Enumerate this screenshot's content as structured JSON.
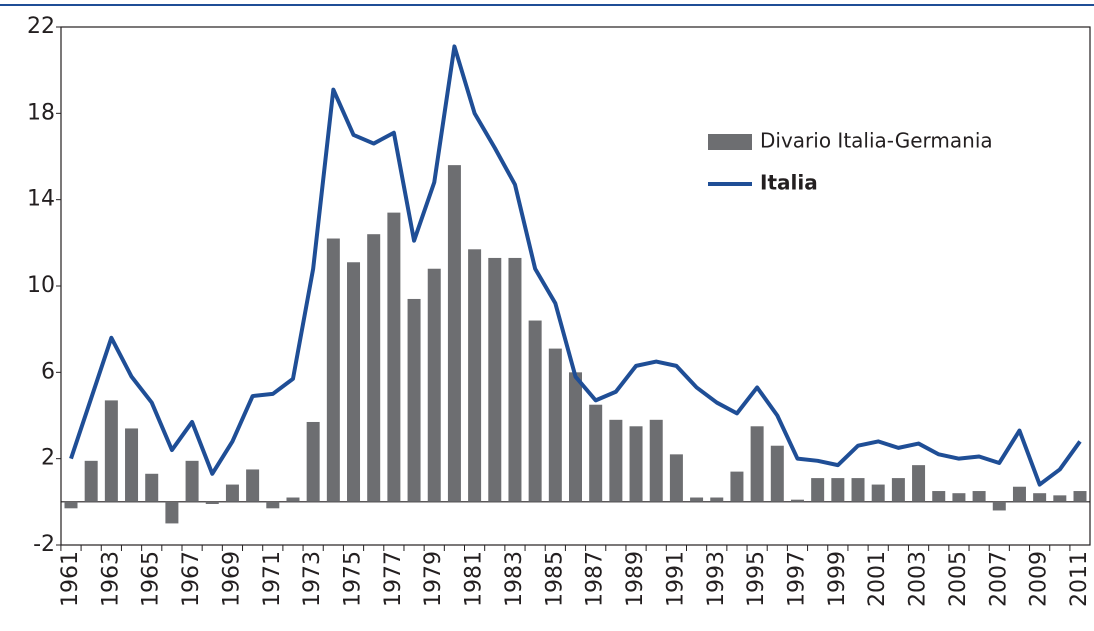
{
  "chart_data": {
    "type": "bar_line",
    "categories": [
      "1961",
      null,
      "1963",
      null,
      "1965",
      null,
      "1967",
      null,
      "1969",
      null,
      "1971",
      null,
      "1973",
      null,
      "1975",
      null,
      "1977",
      null,
      "1979",
      null,
      "1981",
      null,
      "1983",
      null,
      "1985",
      null,
      "1987",
      null,
      "1989",
      null,
      "1991",
      null,
      "1993",
      null,
      "1995",
      null,
      "1997",
      null,
      "1999",
      null,
      "2001",
      null,
      "2003",
      null,
      "2005",
      null,
      "2007",
      null,
      "2009",
      null,
      "2011"
    ],
    "series": [
      {
        "name": "Divario Italia-Germania",
        "type": "bar",
        "color": "#6d6e71",
        "values": [
          -0.3,
          1.9,
          4.7,
          3.4,
          1.3,
          -1.0,
          1.9,
          -0.1,
          0.8,
          1.5,
          -0.3,
          0.2,
          3.7,
          12.2,
          11.1,
          12.4,
          13.4,
          9.4,
          10.8,
          15.6,
          11.7,
          11.3,
          11.3,
          8.4,
          7.1,
          6.0,
          4.5,
          3.8,
          3.5,
          3.8,
          2.2,
          0.2,
          0.2,
          1.4,
          3.5,
          2.6,
          0.1,
          1.1,
          1.1,
          1.1,
          0.8,
          1.1,
          1.7,
          0.5,
          0.4,
          0.5,
          -0.4,
          0.7,
          0.4,
          0.3,
          0.5
        ]
      },
      {
        "name": "Italia",
        "type": "line",
        "color": "#1f4e96",
        "values": [
          2.0,
          4.8,
          7.6,
          5.8,
          4.6,
          2.4,
          3.7,
          1.3,
          2.8,
          4.9,
          5.0,
          5.7,
          10.8,
          19.1,
          17.0,
          16.6,
          17.1,
          12.1,
          14.8,
          21.1,
          18.0,
          16.4,
          14.7,
          10.8,
          9.2,
          5.8,
          4.7,
          5.1,
          6.3,
          6.5,
          6.3,
          5.3,
          4.6,
          4.1,
          5.3,
          4.0,
          2.0,
          1.9,
          1.7,
          2.6,
          2.8,
          2.5,
          2.7,
          2.2,
          2.0,
          2.1,
          1.8,
          3.3,
          0.8,
          1.5,
          2.8
        ]
      }
    ],
    "ylim": [
      -2,
      22
    ],
    "yticks": [
      -2,
      2,
      6,
      10,
      14,
      18,
      22
    ],
    "legend": "top-right"
  }
}
